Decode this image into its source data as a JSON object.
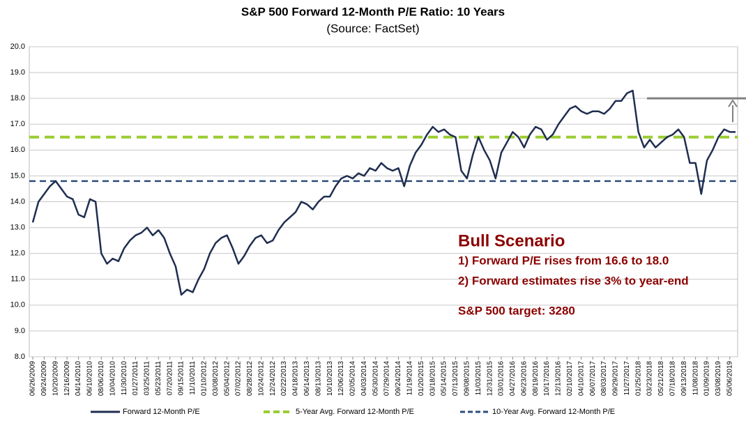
{
  "chart_data": {
    "type": "line",
    "title": "S&P 500 Forward 12-Month P/E Ratio: 10 Years",
    "subtitle": "(Source: FactSet)",
    "categories": [
      "06/26/2009",
      null,
      "09/24/2009",
      null,
      "10/20/2009",
      null,
      "12/16/2009",
      null,
      "04/14/2010",
      null,
      "06/10/2010",
      null,
      "08/06/2010",
      null,
      "10/04/2010",
      null,
      "11/30/2010",
      null,
      "01/27/2011",
      null,
      "03/25/2011",
      null,
      "05/23/2011",
      null,
      "07/20/2011",
      null,
      "09/15/2011",
      null,
      "11/10/2011",
      null,
      "01/10/2012",
      null,
      "03/08/2012",
      null,
      "05/04/2012",
      null,
      "07/02/2012",
      null,
      "08/28/2012",
      null,
      "10/24/2012",
      null,
      "12/24/2012",
      null,
      "02/22/2013",
      null,
      "04/18/2013",
      null,
      "06/14/2013",
      null,
      "08/13/2013",
      null,
      "10/10/2013",
      null,
      "12/06/2013",
      null,
      "02/05/2014",
      null,
      "04/03/2014",
      null,
      "05/30/2014",
      null,
      "07/29/2014",
      null,
      "09/24/2014",
      null,
      "11/19/2014",
      null,
      "01/20/2015",
      null,
      "03/18/2015",
      null,
      "05/14/2015",
      null,
      "07/13/2015",
      null,
      "09/08/2015",
      null,
      "11/03/2015",
      null,
      "12/31/2015",
      null,
      "03/01/2016",
      null,
      "04/27/2016",
      null,
      "06/23/2016",
      null,
      "08/19/2016",
      null,
      "10/17/2016",
      null,
      "12/13/2016",
      null,
      "02/10/2017",
      null,
      "04/10/2017",
      null,
      "06/07/2017",
      null,
      "08/03/2017",
      null,
      "09/29/2017",
      null,
      "11/27/2017",
      null,
      "01/25/2018",
      null,
      "03/23/2018",
      null,
      "05/21/2018",
      null,
      "07/18/2018",
      null,
      "09/13/2018",
      null,
      "11/08/2018",
      null,
      "01/09/2019",
      null,
      "03/08/2019",
      null,
      "05/06/2019",
      null
    ],
    "series": [
      {
        "name": "Forward 12-Month P/E",
        "color": "#1f2d50",
        "values": [
          13.2,
          14.0,
          14.3,
          14.6,
          14.8,
          14.5,
          14.2,
          14.1,
          13.5,
          13.4,
          14.1,
          14.0,
          12.0,
          11.6,
          11.8,
          11.7,
          12.2,
          12.5,
          12.7,
          12.8,
          13.0,
          12.7,
          12.9,
          12.6,
          12.0,
          11.5,
          10.4,
          10.6,
          10.5,
          11.0,
          11.4,
          12.0,
          12.4,
          12.6,
          12.7,
          12.2,
          11.6,
          11.9,
          12.3,
          12.6,
          12.7,
          12.4,
          12.5,
          12.9,
          13.2,
          13.4,
          13.6,
          14.0,
          13.9,
          13.7,
          14.0,
          14.2,
          14.2,
          14.6,
          14.9,
          15.0,
          14.9,
          15.1,
          15.0,
          15.3,
          15.2,
          15.5,
          15.3,
          15.2,
          15.3,
          14.6,
          15.4,
          15.9,
          16.2,
          16.6,
          16.9,
          16.7,
          16.8,
          16.6,
          16.5,
          15.2,
          14.9,
          15.8,
          16.5,
          16.0,
          15.6,
          14.9,
          15.9,
          16.3,
          16.7,
          16.5,
          16.1,
          16.6,
          16.9,
          16.8,
          16.4,
          16.6,
          17.0,
          17.3,
          17.6,
          17.7,
          17.5,
          17.4,
          17.5,
          17.5,
          17.4,
          17.6,
          17.9,
          17.9,
          18.2,
          18.3,
          16.7,
          16.1,
          16.4,
          16.1,
          16.3,
          16.5,
          16.6,
          16.8,
          16.5,
          15.5,
          15.5,
          14.3,
          15.6,
          16.0,
          16.5,
          16.8,
          16.7,
          16.7
        ]
      }
    ],
    "reference_lines": [
      {
        "name": "5-Year Avg. Forward 12-Month P/E",
        "color": "#9acd32",
        "value": 16.5
      },
      {
        "name": "10-Year Avg. Forward 12-Month P/E",
        "color": "#2e4d7b",
        "value": 14.8
      }
    ],
    "target_line": {
      "value": 18.0,
      "color": "#808080"
    },
    "ylim": [
      8,
      20
    ],
    "yticks": [
      {
        "value": 8,
        "label": "8.0"
      },
      {
        "value": 9,
        "label": "9.0"
      },
      {
        "value": 10,
        "label": "10.0"
      },
      {
        "value": 11,
        "label": "11.0"
      },
      {
        "value": 12,
        "label": "12.0"
      },
      {
        "value": 13,
        "label": "13.0"
      },
      {
        "value": 14,
        "label": "14.0"
      },
      {
        "value": 15,
        "label": "15.0"
      },
      {
        "value": 16,
        "label": "16.0"
      },
      {
        "value": 17,
        "label": "17.0"
      },
      {
        "value": 18,
        "label": "18.0"
      },
      {
        "value": 19,
        "label": "19.0"
      },
      {
        "value": 20,
        "label": "20.0"
      }
    ],
    "grid": true,
    "legend": "bottom",
    "annotation": {
      "heading": "Bull Scenario",
      "lines": [
        "1) Forward P/E rises from 16.6 to 18.0",
        "2) Forward estimates rise 3% to year-end"
      ],
      "target": "S&P 500 target: 3280",
      "color": "#8b0000"
    }
  }
}
